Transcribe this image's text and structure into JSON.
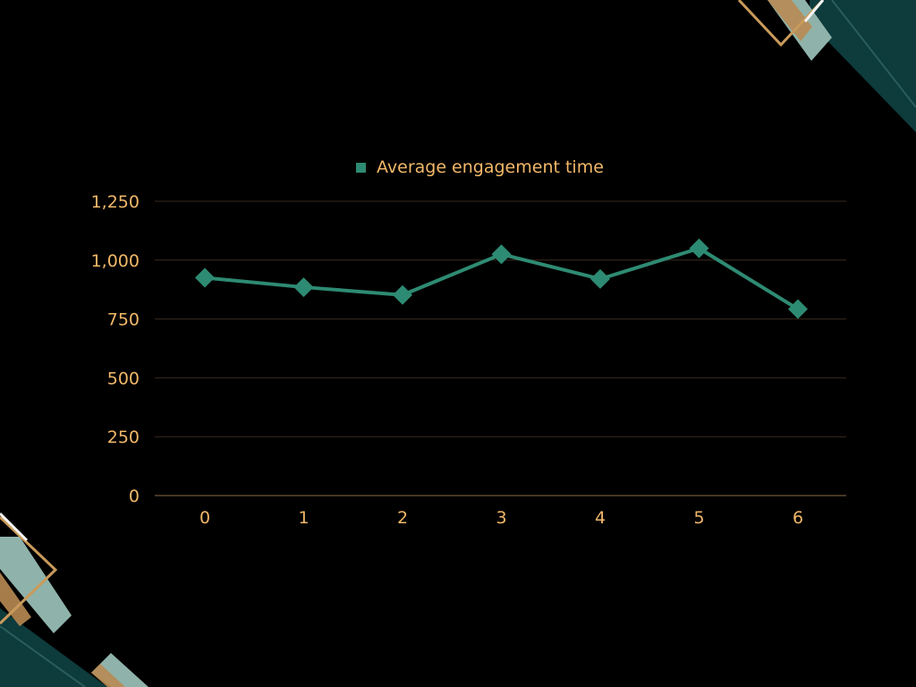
{
  "colors": {
    "background": "#000000",
    "series": "#2E8B73",
    "text": "#F2B869",
    "gridline": "#3A2A1E",
    "axis": "#8C6A48",
    "deco_teal_dark": "#0E3B3C",
    "deco_teal_light": "#8FB3AA",
    "deco_gold": "#C99A5B",
    "deco_white": "#F4F4F4"
  },
  "chart_data": {
    "type": "line",
    "legend": {
      "placement": "top-center",
      "entries": [
        "Average engagement time"
      ]
    },
    "x": [
      0,
      1,
      2,
      3,
      4,
      5,
      6
    ],
    "x_tick_labels": [
      "0",
      "1",
      "2",
      "3",
      "4",
      "5",
      "6"
    ],
    "series": [
      {
        "name": "Average engagement time",
        "marker": "diamond",
        "values": [
          925,
          885,
          852,
          1025,
          920,
          1050,
          792
        ]
      }
    ],
    "y_ticks": [
      0,
      250,
      500,
      750,
      1000,
      1250
    ],
    "y_tick_labels": [
      "0",
      "250",
      "500",
      "750",
      "1,000",
      "1,250"
    ],
    "ylim": [
      0,
      1250
    ],
    "grid": true,
    "title": "",
    "xlabel": "",
    "ylabel": ""
  }
}
